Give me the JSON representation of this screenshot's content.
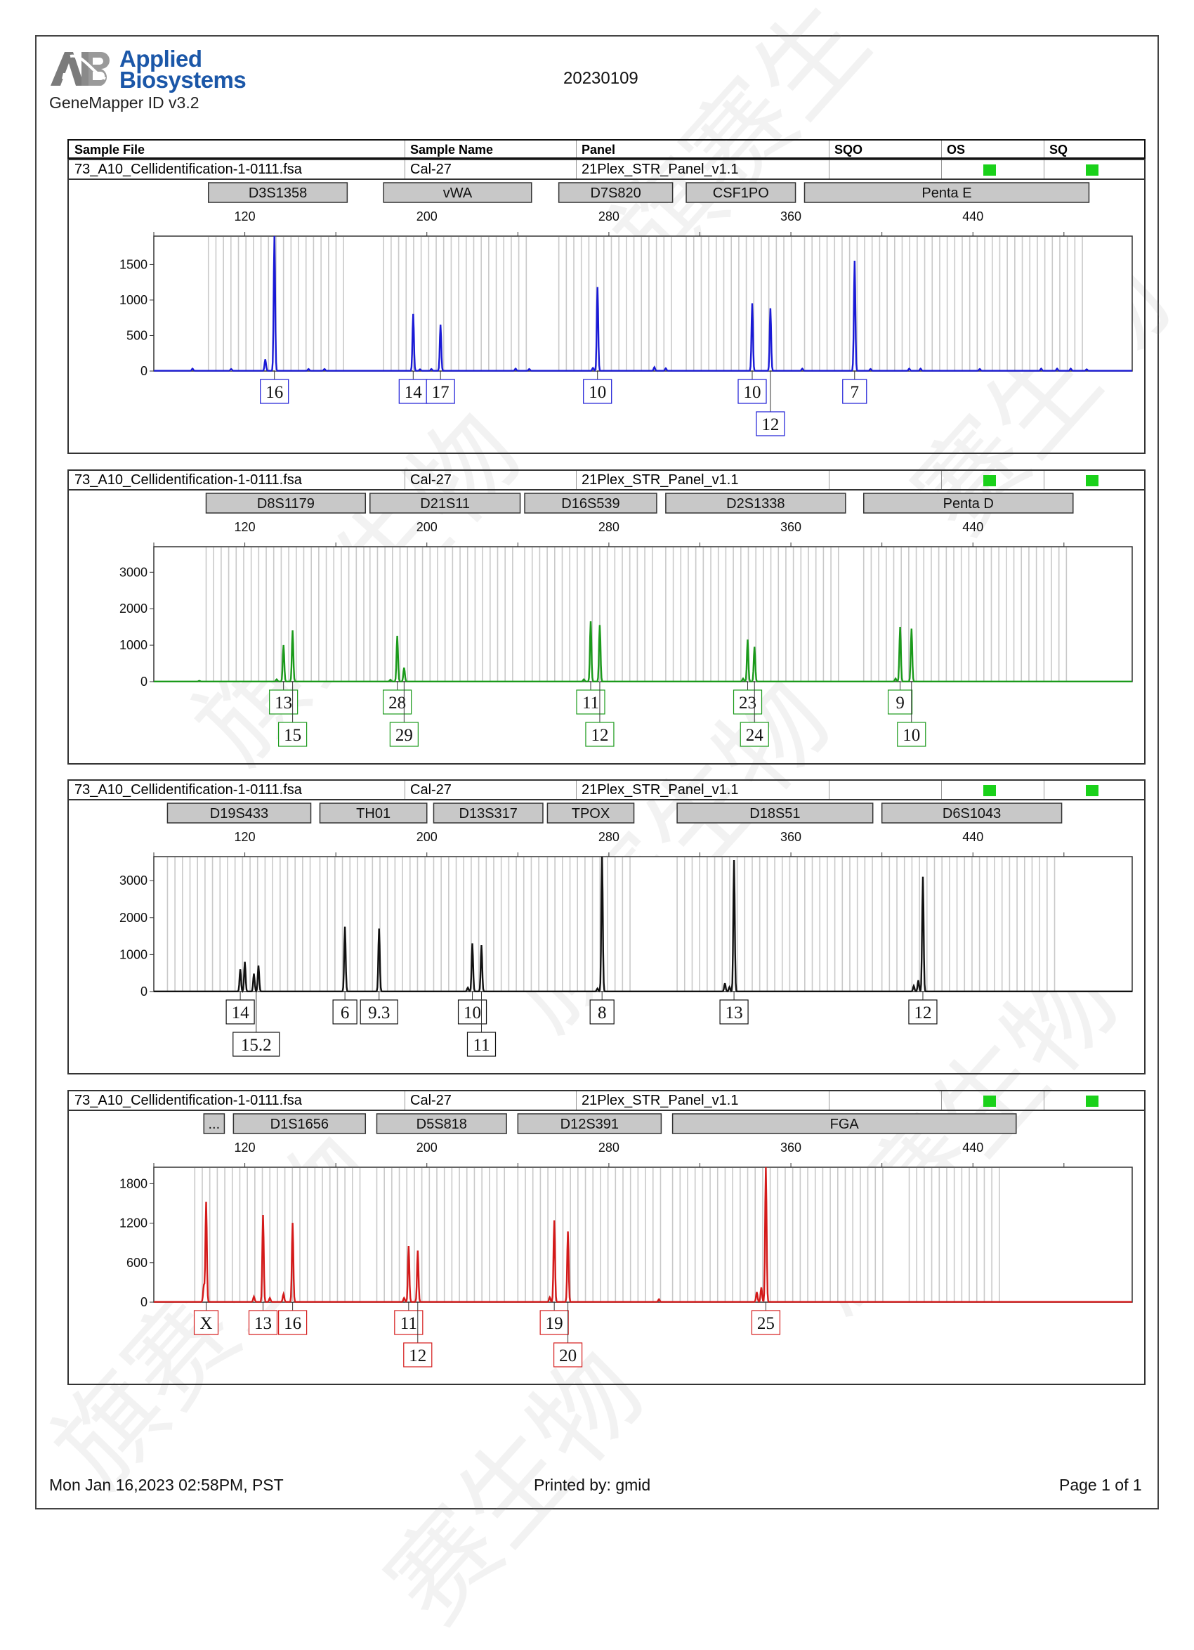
{
  "header": {
    "logo_text_line1": "Applied",
    "logo_text_line2": "Biosystems",
    "app_version": "GeneMapper ID v3.2",
    "date_code": "20230109"
  },
  "columns": {
    "sample_file": "Sample File",
    "sample_name": "Sample Name",
    "panel": "Panel",
    "sqo": "SQO",
    "os": "OS",
    "sq": "SQ"
  },
  "sample": {
    "file": "73_A10_Cellidentification-1-0111.fsa",
    "name": "Cal-27",
    "panel": "21Plex_STR_Panel_v1.1",
    "flag_color": "#1ad11a"
  },
  "footer": {
    "datetime": "Mon Jan 16,2023 02:58PM, PST",
    "printed_by": "Printed by: gmid",
    "page": "Page 1 of 1"
  },
  "chart_data": [
    {
      "type": "line",
      "dye": "blue",
      "color": "#1a1ad6",
      "x_ticks": [
        120,
        200,
        280,
        360,
        440
      ],
      "xlim": [
        80,
        510
      ],
      "y_ticks": [
        0,
        500,
        1000,
        1500
      ],
      "ylim": [
        0,
        1900
      ],
      "markers": [
        {
          "name": "D3S1358",
          "start": 104,
          "end": 165
        },
        {
          "name": "vWA",
          "start": 181,
          "end": 246
        },
        {
          "name": "D7S820",
          "start": 258,
          "end": 308
        },
        {
          "name": "CSF1PO",
          "start": 314,
          "end": 362
        },
        {
          "name": "Penta E",
          "start": 366,
          "end": 491
        }
      ],
      "bin_ranges": [
        [
          104,
          165
        ],
        [
          181,
          246
        ],
        [
          258,
          308
        ],
        [
          314,
          362
        ],
        [
          366,
          491
        ]
      ],
      "peaks": [
        {
          "x": 97,
          "y": 30
        },
        {
          "x": 114,
          "y": 25
        },
        {
          "x": 129,
          "y": 160
        },
        {
          "x": 133,
          "y": 1900
        },
        {
          "x": 148,
          "y": 25
        },
        {
          "x": 155,
          "y": 25
        },
        {
          "x": 197,
          "y": 20
        },
        {
          "x": 202,
          "y": 25
        },
        {
          "x": 194,
          "y": 800
        },
        {
          "x": 206,
          "y": 650
        },
        {
          "x": 239,
          "y": 30
        },
        {
          "x": 245,
          "y": 25
        },
        {
          "x": 275,
          "y": 1180
        },
        {
          "x": 273,
          "y": 40
        },
        {
          "x": 300,
          "y": 50
        },
        {
          "x": 305,
          "y": 35
        },
        {
          "x": 343,
          "y": 950
        },
        {
          "x": 351,
          "y": 880
        },
        {
          "x": 365,
          "y": 30
        },
        {
          "x": 388,
          "y": 1550
        },
        {
          "x": 395,
          "y": 25
        },
        {
          "x": 412,
          "y": 30
        },
        {
          "x": 417,
          "y": 30
        },
        {
          "x": 443,
          "y": 25
        },
        {
          "x": 470,
          "y": 30
        },
        {
          "x": 477,
          "y": 30
        },
        {
          "x": 483,
          "y": 30
        },
        {
          "x": 490,
          "y": 20
        }
      ],
      "alleles": [
        {
          "label": "16",
          "x": 133,
          "row": 1
        },
        {
          "label": "14",
          "x": 194,
          "row": 1
        },
        {
          "label": "17",
          "x": 206,
          "row": 1
        },
        {
          "label": "10",
          "x": 275,
          "row": 1
        },
        {
          "label": "10",
          "x": 343,
          "row": 1
        },
        {
          "label": "12",
          "x": 351,
          "row": 2
        },
        {
          "label": "7",
          "x": 388,
          "row": 1
        }
      ]
    },
    {
      "type": "line",
      "dye": "green",
      "color": "#1b9a1b",
      "x_ticks": [
        120,
        200,
        280,
        360,
        440
      ],
      "xlim": [
        80,
        510
      ],
      "y_ticks": [
        0,
        1000,
        2000,
        3000
      ],
      "ylim": [
        0,
        3700
      ],
      "markers": [
        {
          "name": "D8S1179",
          "start": 103,
          "end": 173
        },
        {
          "name": "D21S11",
          "start": 175,
          "end": 241
        },
        {
          "name": "D16S539",
          "start": 243,
          "end": 301
        },
        {
          "name": "D2S1338",
          "start": 305,
          "end": 384
        },
        {
          "name": "Penta D",
          "start": 392,
          "end": 484
        }
      ],
      "bin_ranges": [
        [
          103,
          173
        ],
        [
          175,
          241
        ],
        [
          243,
          301
        ],
        [
          305,
          384
        ],
        [
          392,
          484
        ]
      ],
      "peaks": [
        {
          "x": 100,
          "y": 20
        },
        {
          "x": 137,
          "y": 1000
        },
        {
          "x": 141,
          "y": 1400
        },
        {
          "x": 134,
          "y": 60
        },
        {
          "x": 187,
          "y": 1250
        },
        {
          "x": 190,
          "y": 380
        },
        {
          "x": 184,
          "y": 50
        },
        {
          "x": 272,
          "y": 1650
        },
        {
          "x": 276,
          "y": 1550
        },
        {
          "x": 269,
          "y": 60
        },
        {
          "x": 341,
          "y": 1150
        },
        {
          "x": 344,
          "y": 950
        },
        {
          "x": 339,
          "y": 80
        },
        {
          "x": 408,
          "y": 1500
        },
        {
          "x": 413,
          "y": 1450
        },
        {
          "x": 406,
          "y": 80
        }
      ],
      "alleles": [
        {
          "label": "13",
          "x": 137,
          "row": 1
        },
        {
          "label": "15",
          "x": 141,
          "row": 2
        },
        {
          "label": "28",
          "x": 187,
          "row": 1
        },
        {
          "label": "29",
          "x": 190,
          "row": 2
        },
        {
          "label": "11",
          "x": 272,
          "row": 1
        },
        {
          "label": "12",
          "x": 276,
          "row": 2
        },
        {
          "label": "23",
          "x": 341,
          "row": 1
        },
        {
          "label": "24",
          "x": 344,
          "row": 2
        },
        {
          "label": "9",
          "x": 408,
          "row": 1
        },
        {
          "label": "10",
          "x": 413,
          "row": 2
        }
      ]
    },
    {
      "type": "line",
      "dye": "black",
      "color": "#111111",
      "x_ticks": [
        120,
        200,
        280,
        360,
        440
      ],
      "xlim": [
        80,
        510
      ],
      "y_ticks": [
        0,
        1000,
        2000,
        3000
      ],
      "ylim": [
        0,
        3650
      ],
      "markers": [
        {
          "name": "D19S433",
          "start": 86,
          "end": 149
        },
        {
          "name": "TH01",
          "start": 153,
          "end": 200
        },
        {
          "name": "D13S317",
          "start": 203,
          "end": 251
        },
        {
          "name": "TPOX",
          "start": 253,
          "end": 291
        },
        {
          "name": "D18S51",
          "start": 310,
          "end": 396
        },
        {
          "name": "D6S1043",
          "start": 400,
          "end": 479
        }
      ],
      "bin_ranges": [
        [
          86,
          149
        ],
        [
          153,
          200
        ],
        [
          203,
          251
        ],
        [
          253,
          291
        ],
        [
          310,
          396
        ],
        [
          400,
          479
        ]
      ],
      "peaks": [
        {
          "x": 120,
          "y": 800
        },
        {
          "x": 118,
          "y": 600
        },
        {
          "x": 126,
          "y": 700
        },
        {
          "x": 124,
          "y": 480
        },
        {
          "x": 164,
          "y": 1750
        },
        {
          "x": 179,
          "y": 1700
        },
        {
          "x": 220,
          "y": 1300
        },
        {
          "x": 224,
          "y": 1250
        },
        {
          "x": 218,
          "y": 100
        },
        {
          "x": 277,
          "y": 3650
        },
        {
          "x": 275,
          "y": 80
        },
        {
          "x": 335,
          "y": 3550
        },
        {
          "x": 331,
          "y": 220
        },
        {
          "x": 333,
          "y": 120
        },
        {
          "x": 418,
          "y": 3100
        },
        {
          "x": 414,
          "y": 150
        },
        {
          "x": 416,
          "y": 300
        }
      ],
      "alleles": [
        {
          "label": "14",
          "x": 118,
          "row": 1
        },
        {
          "label": "15.2",
          "x": 125,
          "row": 2
        },
        {
          "label": "6",
          "x": 164,
          "row": 1
        },
        {
          "label": "9.3",
          "x": 179,
          "row": 1
        },
        {
          "label": "10",
          "x": 220,
          "row": 1
        },
        {
          "label": "11",
          "x": 224,
          "row": 2
        },
        {
          "label": "8",
          "x": 277,
          "row": 1
        },
        {
          "label": "13",
          "x": 335,
          "row": 1
        },
        {
          "label": "12",
          "x": 418,
          "row": 1
        }
      ]
    },
    {
      "type": "line",
      "dye": "red",
      "color": "#d41a1a",
      "x_ticks": [
        120,
        200,
        280,
        360,
        440
      ],
      "xlim": [
        80,
        510
      ],
      "y_ticks": [
        0,
        600,
        1200,
        1800
      ],
      "ylim": [
        0,
        2050
      ],
      "markers": [
        {
          "name": "...",
          "start": 102,
          "end": 111
        },
        {
          "name": "D1S1656",
          "start": 115,
          "end": 173
        },
        {
          "name": "D5S818",
          "start": 178,
          "end": 235
        },
        {
          "name": "D12S391",
          "start": 240,
          "end": 303
        },
        {
          "name": "FGA",
          "start": 308,
          "end": 459
        }
      ],
      "bin_ranges": [
        [
          98,
          173
        ],
        [
          178,
          235
        ],
        [
          240,
          303
        ],
        [
          308,
          401
        ],
        [
          412,
          452
        ]
      ],
      "peaks": [
        {
          "x": 103,
          "y": 1520
        },
        {
          "x": 102,
          "y": 250
        },
        {
          "x": 124,
          "y": 80
        },
        {
          "x": 128,
          "y": 1320
        },
        {
          "x": 131,
          "y": 60
        },
        {
          "x": 137,
          "y": 120
        },
        {
          "x": 141,
          "y": 1200
        },
        {
          "x": 192,
          "y": 850
        },
        {
          "x": 196,
          "y": 780
        },
        {
          "x": 190,
          "y": 60
        },
        {
          "x": 256,
          "y": 1240
        },
        {
          "x": 262,
          "y": 1070
        },
        {
          "x": 254,
          "y": 70
        },
        {
          "x": 302,
          "y": 40
        },
        {
          "x": 345,
          "y": 150
        },
        {
          "x": 347,
          "y": 220
        },
        {
          "x": 349,
          "y": 2050
        }
      ],
      "alleles": [
        {
          "label": "X",
          "x": 103,
          "row": 1
        },
        {
          "label": "13",
          "x": 128,
          "row": 1
        },
        {
          "label": "16",
          "x": 141,
          "row": 1
        },
        {
          "label": "11",
          "x": 192,
          "row": 1
        },
        {
          "label": "12",
          "x": 196,
          "row": 2
        },
        {
          "label": "19",
          "x": 256,
          "row": 1
        },
        {
          "label": "20",
          "x": 262,
          "row": 2
        },
        {
          "label": "25",
          "x": 349,
          "row": 1
        }
      ]
    }
  ]
}
